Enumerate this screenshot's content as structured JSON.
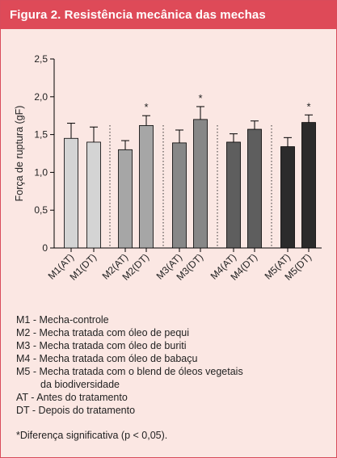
{
  "header": {
    "title": "Figura 2. Resistência mecânica das mechas"
  },
  "chart_data": {
    "type": "bar",
    "ylabel": "Força de ruptura (gF)",
    "ylim": [
      0,
      2.5
    ],
    "yticks": [
      "0",
      "0,5",
      "1,0",
      "1,5",
      "2,0",
      "2,5"
    ],
    "categories": [
      "M1(AT)",
      "M1(DT)",
      "M2(AT)",
      "M2(DT)",
      "M3(AT)",
      "M3(DT)",
      "M4(AT)",
      "M4(DT)",
      "M5(AT)",
      "M5(DT)"
    ],
    "values": [
      1.45,
      1.4,
      1.3,
      1.62,
      1.39,
      1.7,
      1.4,
      1.57,
      1.34,
      1.66
    ],
    "errors": [
      0.2,
      0.2,
      0.12,
      0.13,
      0.17,
      0.17,
      0.11,
      0.11,
      0.12,
      0.1
    ],
    "significant": [
      false,
      false,
      false,
      true,
      false,
      true,
      false,
      false,
      false,
      true
    ],
    "significance_marker": "*",
    "colors": [
      "#d4d4d4",
      "#d4d4d4",
      "#a6a6a6",
      "#a6a6a6",
      "#878787",
      "#878787",
      "#5e5e5e",
      "#5e5e5e",
      "#2b2b2b",
      "#2b2b2b"
    ]
  },
  "legend": {
    "items": [
      "M1 - Mecha-controle",
      "M2 - Mecha tratada com óleo de pequi",
      "M3 - Mecha tratada com óleo de buriti",
      "M4 - Mecha tratada com óleo de babaçu",
      "M5 - Mecha tratada com o blend de óleos vegetais",
      "da biodiversidade",
      "AT - Antes do tratamento",
      "DT - Depois do tratamento"
    ],
    "note": "*Diferença significativa (p < 0,05)."
  }
}
